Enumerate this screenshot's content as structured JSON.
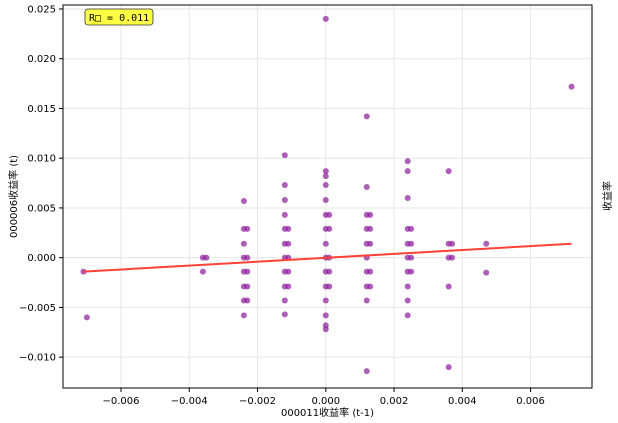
{
  "chart_data": {
    "type": "scatter",
    "xlabel": "000011收益率 (t-1)",
    "ylabel": "000006收益率 (t)",
    "right_label": "收益率",
    "annotation": "R□ = 0.011",
    "xlim": [
      -0.0077,
      0.0078
    ],
    "ylim": [
      -0.0131,
      0.0254
    ],
    "x_ticks": [
      -0.006,
      -0.004,
      -0.002,
      0.0,
      0.002,
      0.004,
      0.006
    ],
    "x_tick_labels": [
      "−0.006",
      "−0.004",
      "−0.002",
      "0.000",
      "0.002",
      "0.004",
      "0.006"
    ],
    "y_ticks": [
      -0.01,
      -0.005,
      0.0,
      0.005,
      0.01,
      0.015,
      0.02,
      0.025
    ],
    "y_tick_labels": [
      "−0.010",
      "−0.005",
      "0.000",
      "0.005",
      "0.010",
      "0.015",
      "0.020",
      "0.025"
    ],
    "grid": true,
    "point_color": "#8B1A9B",
    "line_color": "#FF4136",
    "annotation_bg": "#FFFF44",
    "trend_line": {
      "x": [
        -0.0071,
        0.0072
      ],
      "y": [
        -0.0014,
        0.0014
      ]
    },
    "points": [
      [
        -0.0071,
        -0.0014
      ],
      [
        -0.007,
        -0.006
      ],
      [
        -0.0036,
        0.0
      ],
      [
        -0.0036,
        -0.0014
      ],
      [
        -0.0035,
        0.0
      ],
      [
        -0.0024,
        0.0057
      ],
      [
        -0.0024,
        0.0029
      ],
      [
        -0.0024,
        0.0014
      ],
      [
        -0.0024,
        0.0
      ],
      [
        -0.0024,
        -0.0014
      ],
      [
        -0.0024,
        -0.0029
      ],
      [
        -0.0024,
        -0.0043
      ],
      [
        -0.0024,
        -0.0058
      ],
      [
        -0.0023,
        0.0029
      ],
      [
        -0.0023,
        0.0
      ],
      [
        -0.0023,
        -0.0014
      ],
      [
        -0.0023,
        -0.0029
      ],
      [
        -0.0023,
        -0.0043
      ],
      [
        -0.0012,
        0.0103
      ],
      [
        -0.0012,
        0.0073
      ],
      [
        -0.0012,
        0.0058
      ],
      [
        -0.0012,
        0.0043
      ],
      [
        -0.0012,
        0.0029
      ],
      [
        -0.0012,
        0.0014
      ],
      [
        -0.0012,
        0.0
      ],
      [
        -0.0012,
        -0.0014
      ],
      [
        -0.0012,
        -0.0029
      ],
      [
        -0.0012,
        -0.0043
      ],
      [
        -0.0012,
        -0.0057
      ],
      [
        -0.0011,
        0.0029
      ],
      [
        -0.0011,
        0.0014
      ],
      [
        -0.0011,
        0.0
      ],
      [
        -0.0011,
        -0.0014
      ],
      [
        -0.0011,
        -0.0029
      ],
      [
        0.0,
        0.024
      ],
      [
        0.0,
        0.0087
      ],
      [
        0.0,
        0.0082
      ],
      [
        0.0,
        0.0073
      ],
      [
        0.0,
        0.0058
      ],
      [
        0.0,
        0.0043
      ],
      [
        0.0,
        0.0029
      ],
      [
        0.0,
        0.0014
      ],
      [
        0.0,
        0.0
      ],
      [
        0.0,
        -0.0014
      ],
      [
        0.0,
        -0.0029
      ],
      [
        0.0,
        -0.0043
      ],
      [
        0.0,
        -0.0058
      ],
      [
        0.0,
        -0.0068
      ],
      [
        0.0,
        -0.0072
      ],
      [
        0.0001,
        0.0043
      ],
      [
        0.0001,
        0.0029
      ],
      [
        0.0001,
        0.0
      ],
      [
        0.0001,
        -0.0014
      ],
      [
        0.0001,
        -0.0029
      ],
      [
        0.0012,
        0.0142
      ],
      [
        0.0012,
        0.0071
      ],
      [
        0.0012,
        0.0043
      ],
      [
        0.0012,
        0.0029
      ],
      [
        0.0012,
        0.0014
      ],
      [
        0.0012,
        0.0
      ],
      [
        0.0012,
        -0.0014
      ],
      [
        0.0012,
        -0.0029
      ],
      [
        0.0012,
        -0.0043
      ],
      [
        0.0012,
        -0.0114
      ],
      [
        0.0013,
        0.0043
      ],
      [
        0.0013,
        0.0029
      ],
      [
        0.0013,
        0.0014
      ],
      [
        0.0013,
        -0.0014
      ],
      [
        0.0013,
        -0.0029
      ],
      [
        0.0024,
        0.0097
      ],
      [
        0.0024,
        0.0087
      ],
      [
        0.0024,
        0.006
      ],
      [
        0.0024,
        0.0029
      ],
      [
        0.0024,
        0.0014
      ],
      [
        0.0024,
        0.0
      ],
      [
        0.0024,
        -0.0014
      ],
      [
        0.0024,
        -0.0029
      ],
      [
        0.0024,
        -0.0043
      ],
      [
        0.0024,
        -0.0058
      ],
      [
        0.0025,
        0.0029
      ],
      [
        0.0025,
        0.0014
      ],
      [
        0.0025,
        0.0
      ],
      [
        0.0025,
        -0.0014
      ],
      [
        0.0036,
        0.0087
      ],
      [
        0.0036,
        0.0014
      ],
      [
        0.0036,
        0.0
      ],
      [
        0.0036,
        -0.0029
      ],
      [
        0.0036,
        -0.011
      ],
      [
        0.0037,
        0.0014
      ],
      [
        0.0037,
        0.0
      ],
      [
        0.0047,
        0.0014
      ],
      [
        0.0047,
        -0.0015
      ],
      [
        0.0072,
        0.0172
      ]
    ]
  }
}
